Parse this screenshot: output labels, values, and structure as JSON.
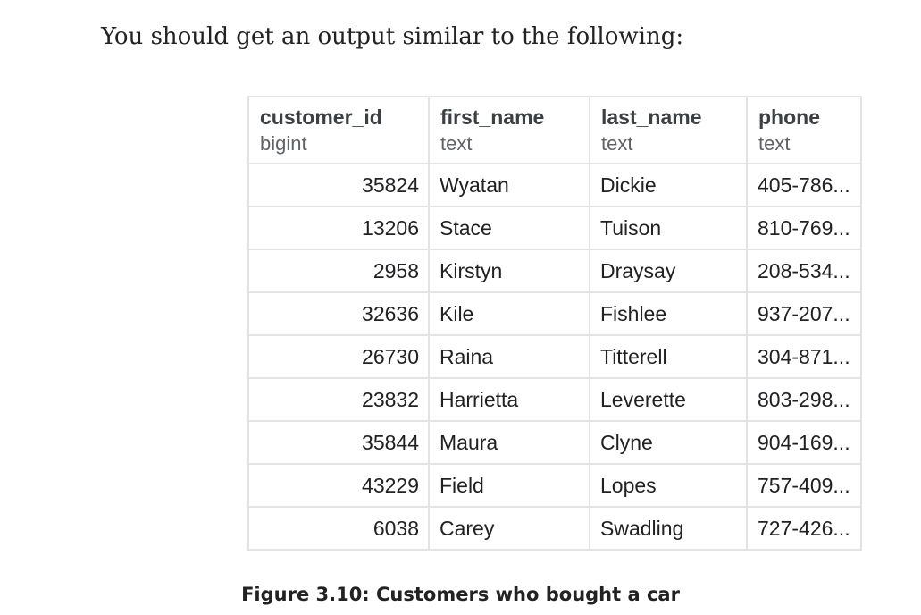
{
  "intro_text": "You should get an output similar to the following:",
  "table": {
    "columns": [
      {
        "name": "customer_id",
        "type": "bigint"
      },
      {
        "name": "first_name",
        "type": "text"
      },
      {
        "name": "last_name",
        "type": "text"
      },
      {
        "name": "phone",
        "type": "text"
      }
    ],
    "rows": [
      [
        "35824",
        "Wyatan",
        "Dickie",
        "405-786..."
      ],
      [
        "13206",
        "Stace",
        "Tuison",
        "810-769..."
      ],
      [
        "2958",
        "Kirstyn",
        "Draysay",
        "208-534..."
      ],
      [
        "32636",
        "Kile",
        "Fishlee",
        "937-207..."
      ],
      [
        "26730",
        "Raina",
        "Titterell",
        "304-871..."
      ],
      [
        "23832",
        "Harrietta",
        "Leverette",
        "803-298..."
      ],
      [
        "35844",
        "Maura",
        "Clyne",
        "904-169..."
      ],
      [
        "43229",
        "Field",
        "Lopes",
        "757-409..."
      ],
      [
        "6038",
        "Carey",
        "Swadling",
        "727-426..."
      ]
    ]
  },
  "caption": "Figure 3.10: Customers who bought a car"
}
